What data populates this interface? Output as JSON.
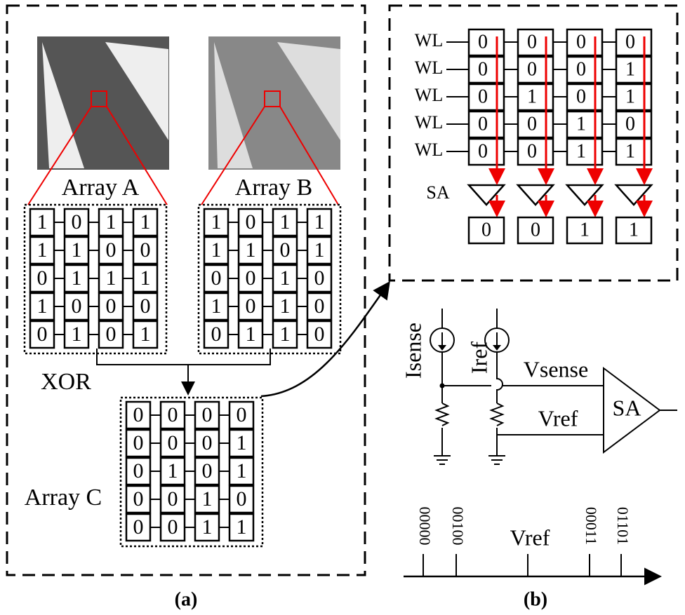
{
  "arrays": {
    "A": {
      "label": "Array A",
      "rows": [
        [
          "1",
          "0",
          "1",
          "1"
        ],
        [
          "1",
          "1",
          "0",
          "0"
        ],
        [
          "0",
          "1",
          "1",
          "1"
        ],
        [
          "1",
          "0",
          "0",
          "0"
        ],
        [
          "0",
          "1",
          "0",
          "1"
        ]
      ]
    },
    "B": {
      "label": "Array B",
      "rows": [
        [
          "1",
          "0",
          "1",
          "1"
        ],
        [
          "1",
          "1",
          "0",
          "1"
        ],
        [
          "0",
          "0",
          "1",
          "0"
        ],
        [
          "1",
          "0",
          "1",
          "0"
        ],
        [
          "0",
          "1",
          "1",
          "0"
        ]
      ]
    },
    "C": {
      "label": "Array C",
      "rows": [
        [
          "0",
          "0",
          "0",
          "0"
        ],
        [
          "0",
          "0",
          "0",
          "1"
        ],
        [
          "0",
          "1",
          "0",
          "1"
        ],
        [
          "0",
          "0",
          "1",
          "0"
        ],
        [
          "0",
          "0",
          "1",
          "1"
        ]
      ]
    }
  },
  "xor": "XOR",
  "matrix": {
    "wl": [
      "WL",
      "WL",
      "WL",
      "WL",
      "WL"
    ],
    "bits": [
      [
        "0",
        "0",
        "0",
        "0"
      ],
      [
        "0",
        "0",
        "0",
        "1"
      ],
      [
        "0",
        "1",
        "0",
        "1"
      ],
      [
        "0",
        "0",
        "1",
        "0"
      ],
      [
        "0",
        "0",
        "1",
        "1"
      ]
    ],
    "sa": "SA",
    "outputs": [
      "0",
      "0",
      "1",
      "1"
    ]
  },
  "circuit": {
    "isense": "Isense",
    "iref": "Iref",
    "vsense": "Vsense",
    "vref": "Vref",
    "sa": "SA"
  },
  "axis": {
    "codes": [
      "00000",
      "00100",
      "00011",
      "01101"
    ],
    "vref": "Vref"
  },
  "captions": [
    "(a)",
    "(b)"
  ]
}
